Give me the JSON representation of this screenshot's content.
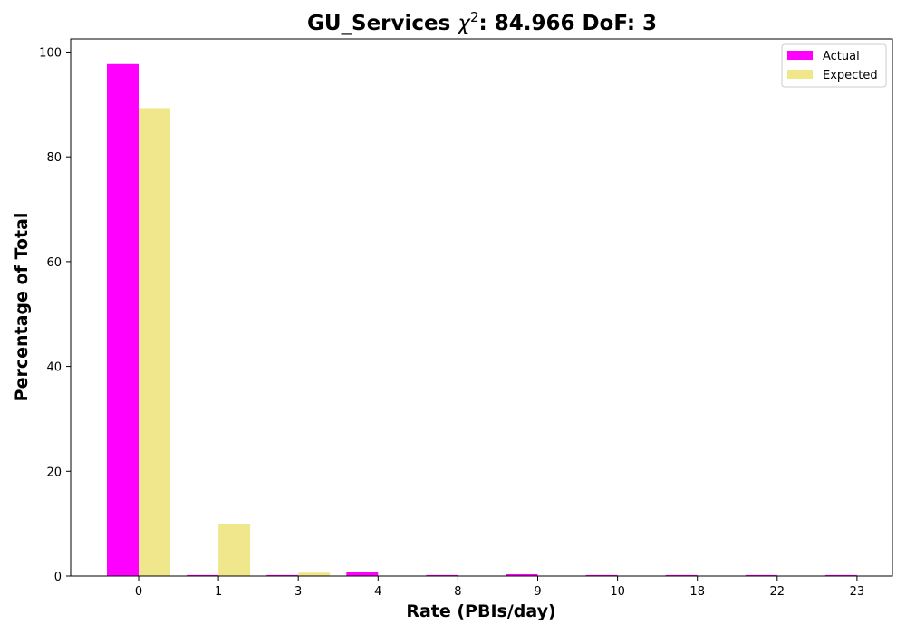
{
  "chart_data": {
    "type": "bar",
    "title": {
      "prefix": "GU_Services ",
      "chi": "χ",
      "sup": "2",
      "suffix": ": 84.966 DoF: 3"
    },
    "xlabel": "Rate (PBIs/day)",
    "ylabel": "Percentage of Total",
    "categories": [
      "0",
      "1",
      "3",
      "4",
      "8",
      "9",
      "10",
      "18",
      "22",
      "23"
    ],
    "series": [
      {
        "name": "Actual",
        "color": "#ff00ff",
        "values": [
          97.7,
          0.2,
          0.2,
          0.7,
          0.2,
          0.35,
          0.2,
          0.2,
          0.2,
          0.2
        ]
      },
      {
        "name": "Expected",
        "color": "#f0e68c",
        "values": [
          89.3,
          10.0,
          0.65,
          0.02,
          0,
          0,
          0,
          0,
          0,
          0
        ]
      }
    ],
    "ylim": [
      0,
      102.5
    ],
    "yticks": [
      0,
      20,
      40,
      60,
      80,
      100
    ],
    "grid": false,
    "legend_position": "top-right"
  }
}
